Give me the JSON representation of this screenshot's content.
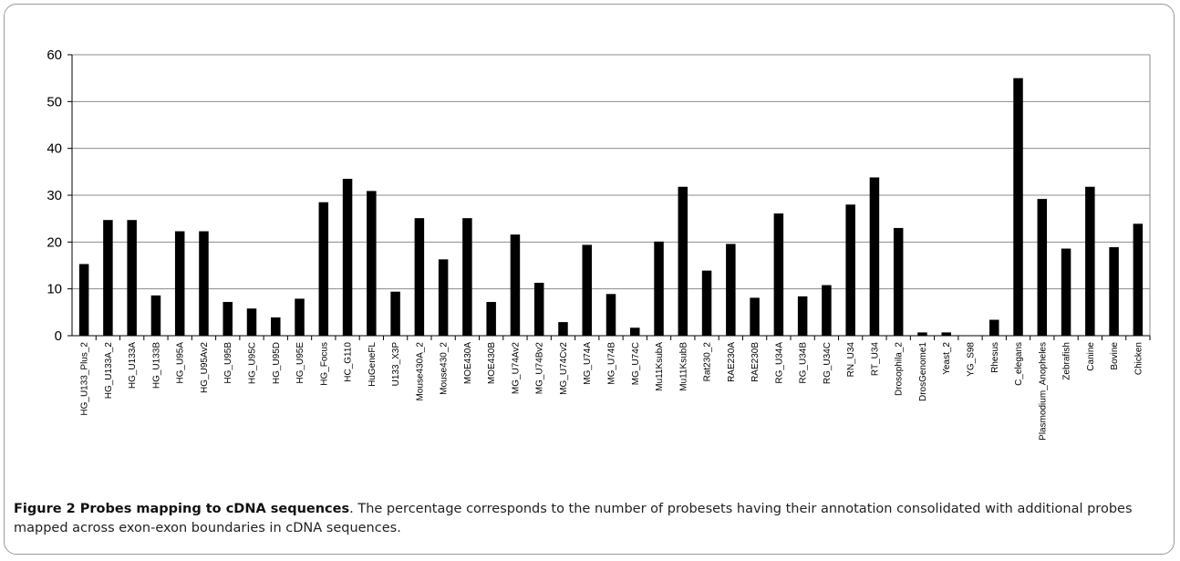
{
  "chart_data": {
    "type": "bar",
    "title": "",
    "xlabel": "",
    "ylabel": "",
    "ylim": [
      0,
      60
    ],
    "yticks": [
      0,
      10,
      20,
      30,
      40,
      50,
      60
    ],
    "grid": "horizontal",
    "bar_color": "#000000",
    "categories": [
      "HG_U133_Plus_2",
      "HG_U133A_2",
      "HG_U133A",
      "HG_U133B",
      "HG_U95A",
      "HG_U95Av2",
      "HG_U95B",
      "HG_U95C",
      "HG_U95D",
      "HG_U95E",
      "HG_Focus",
      "HC_G110",
      "HuGeneFL",
      "U133_X3P",
      "Mouse430A_2",
      "Mouse430_2",
      "MOE430A",
      "MOE430B",
      "MG_U74Av2",
      "MG_U74Bv2",
      "MG_U74Cv2",
      "MG_U74A",
      "MG_U74B",
      "MG_U74C",
      "Mu11KsubA",
      "Mu11KsubB",
      "Rat230_2",
      "RAE230A",
      "RAE230B",
      "RG_U34A",
      "RG_U34B",
      "RG_U34C",
      "RN_U34",
      "RT_U34",
      "Drosophila_2",
      "DrosGenome1",
      "Yeast_2",
      "YG_S98",
      "Rhesus",
      "C_elegans",
      "Plasmodium_Anopheles",
      "Zebrafish",
      "Canine",
      "Bovine",
      "Chicken"
    ],
    "values": [
      15.3,
      24.7,
      24.7,
      8.6,
      22.3,
      22.3,
      7.2,
      5.8,
      3.9,
      7.9,
      28.5,
      33.5,
      30.9,
      9.4,
      25.1,
      16.3,
      25.1,
      7.2,
      21.6,
      11.3,
      2.9,
      19.4,
      8.9,
      1.7,
      20.1,
      31.8,
      13.9,
      19.6,
      8.1,
      26.1,
      8.4,
      10.8,
      28.0,
      33.8,
      23.0,
      0.7,
      0.7,
      0.0,
      3.4,
      55.0,
      29.2,
      18.6,
      31.8,
      18.9,
      23.9
    ]
  },
  "caption": {
    "label": "Figure 2 Probes mapping to cDNA sequences",
    "text": ". The percentage corresponds to the number of probesets having their annotation consolidated with additional probes mapped across exon-exon boundaries in cDNA sequences."
  }
}
